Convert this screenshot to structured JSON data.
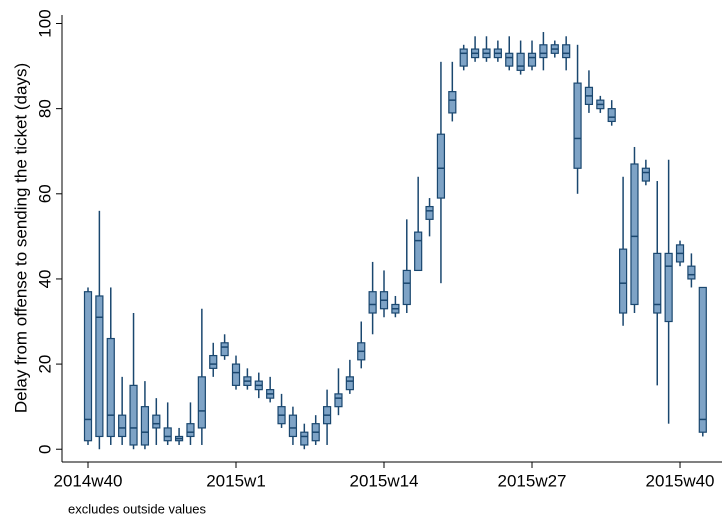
{
  "chart_data": {
    "type": "box",
    "y_label": "Delay from offense to sending the ticket (days)",
    "note": "excludes outside values",
    "categories": [
      "2014w40",
      null,
      null,
      null,
      null,
      null,
      null,
      null,
      null,
      null,
      null,
      null,
      null,
      "2015w1",
      null,
      null,
      null,
      null,
      null,
      null,
      null,
      null,
      null,
      null,
      null,
      null,
      "2015w14",
      null,
      null,
      null,
      null,
      null,
      null,
      null,
      null,
      null,
      null,
      null,
      null,
      "2015w27",
      null,
      null,
      null,
      null,
      null,
      null,
      null,
      null,
      null,
      null,
      null,
      null,
      "2015w40",
      null,
      null
    ],
    "low": [
      1,
      0,
      1,
      1,
      0,
      0,
      1,
      1,
      1,
      1,
      1,
      17,
      21,
      14,
      14,
      12,
      11,
      5,
      1,
      0,
      1,
      1,
      8,
      13,
      19,
      27,
      31,
      31,
      32,
      42,
      50,
      39,
      77,
      89,
      91,
      91,
      91,
      89,
      88,
      89,
      89,
      92,
      89,
      60,
      79,
      79,
      76,
      29,
      32,
      62,
      15,
      6,
      43,
      38,
      3
    ],
    "q1": [
      2,
      3,
      3,
      3,
      1,
      1,
      5,
      2,
      2,
      3,
      5,
      19,
      22,
      15,
      15,
      14,
      12,
      6,
      3,
      1,
      2,
      6,
      10,
      14,
      21,
      32,
      33,
      32,
      34,
      42,
      54,
      59,
      79,
      90,
      92,
      92,
      92,
      90,
      89,
      90,
      92,
      93,
      92,
      66,
      81,
      80,
      77,
      32,
      34,
      63,
      32,
      30,
      44,
      40,
      4
    ],
    "median": [
      7,
      31,
      8,
      5,
      5,
      4,
      6,
      3,
      2.5,
      4,
      9,
      20,
      24,
      18,
      16,
      15,
      13,
      8,
      5,
      3,
      4,
      8,
      12,
      16,
      23,
      34,
      35,
      33,
      39,
      49,
      56,
      66,
      82,
      93,
      93,
      93,
      93,
      92,
      90,
      92,
      93,
      94,
      93,
      73,
      83,
      81,
      78,
      39,
      50,
      65,
      34,
      43,
      46,
      41,
      7
    ],
    "q3": [
      37,
      36,
      26,
      8,
      15,
      10,
      8,
      5,
      3,
      6,
      17,
      22,
      25,
      20,
      17,
      16,
      14,
      10,
      8,
      4,
      6,
      10,
      13,
      17,
      25,
      37,
      37,
      34,
      42,
      51,
      57,
      74,
      84,
      94,
      94,
      94,
      94,
      93,
      93,
      93,
      95,
      95,
      95,
      86,
      85,
      82,
      80,
      47,
      67,
      66,
      46,
      46,
      48,
      43,
      38
    ],
    "high": [
      38,
      56,
      38,
      17,
      32,
      16,
      12,
      11,
      5,
      11,
      33,
      25,
      27,
      22,
      19,
      18,
      17,
      13,
      10,
      6,
      8,
      14,
      19,
      21,
      30,
      44,
      42,
      36,
      54,
      64,
      59,
      91,
      91,
      95,
      97,
      97,
      96,
      97,
      96,
      96,
      98,
      96,
      97,
      95,
      89,
      83,
      82,
      64,
      71,
      68,
      63,
      68,
      49,
      46,
      38
    ],
    "fill": "#7ea3c6",
    "stroke": "#1a476f",
    "ylim": [
      -3,
      102
    ],
    "yticks": [
      0,
      20,
      40,
      60,
      80,
      100
    ],
    "grid": false
  }
}
